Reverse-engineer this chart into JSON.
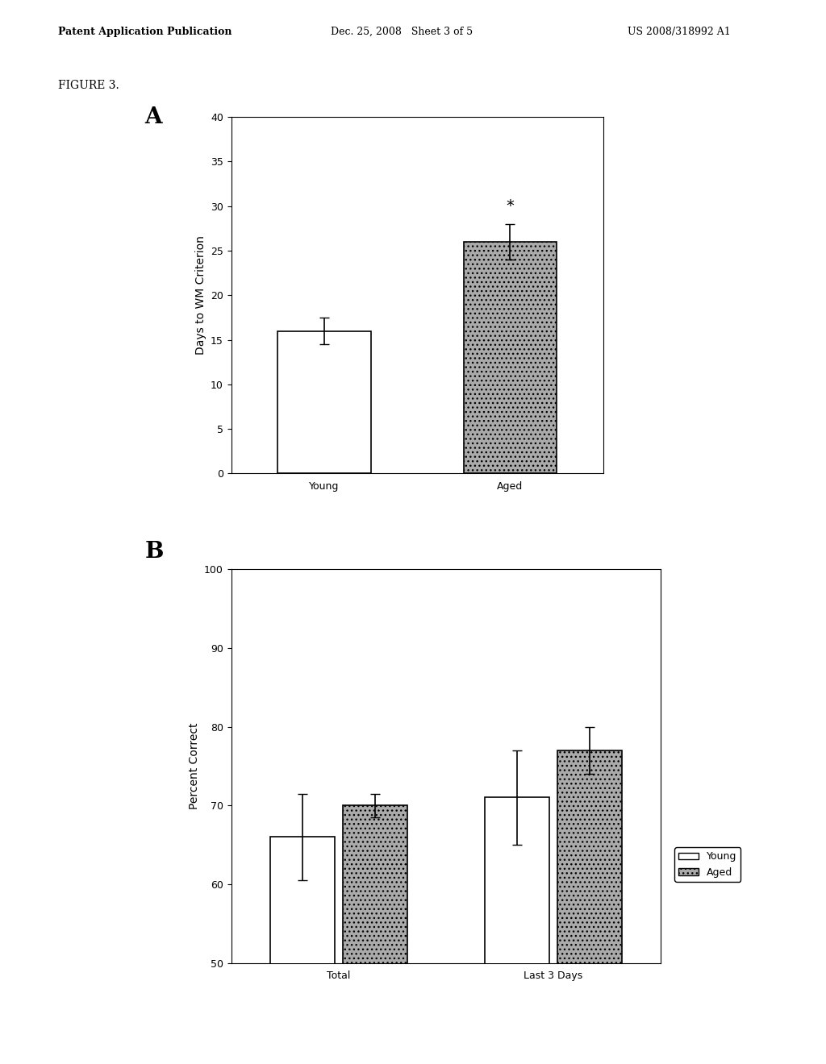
{
  "fig_label": "FIGURE 3.",
  "header_left": "Patent Application Publication",
  "header_center": "Dec. 25, 2008   Sheet 3 of 5",
  "header_right": "US 2008/318992 A1",
  "panel_A": {
    "label": "A",
    "categories": [
      "Young",
      "Aged"
    ],
    "values": [
      16.0,
      26.0
    ],
    "errors": [
      1.5,
      2.0
    ],
    "bar_colors": [
      "#ffffff",
      "#aaaaaa"
    ],
    "bar_edgecolor": "#000000",
    "ylabel": "Days to WM Criterion",
    "ylim": [
      0,
      40
    ],
    "yticks": [
      0,
      5,
      10,
      15,
      20,
      25,
      30,
      35,
      40
    ],
    "star_annotation": "*",
    "star_on_bar": 1
  },
  "panel_B": {
    "label": "B",
    "group_labels": [
      "Total",
      "Last 3 Days"
    ],
    "young_values": [
      66.0,
      71.0
    ],
    "aged_values": [
      70.0,
      77.0
    ],
    "young_errors": [
      5.5,
      6.0
    ],
    "aged_errors": [
      1.5,
      3.0
    ],
    "bar_colors_young": "#ffffff",
    "bar_colors_aged": "#aaaaaa",
    "bar_edgecolor": "#000000",
    "ylabel": "Percent Correct",
    "ylim": [
      50,
      100
    ],
    "yticks": [
      50,
      60,
      70,
      80,
      90,
      100
    ],
    "legend_labels": [
      "Young",
      "Aged"
    ],
    "legend_colors": [
      "#ffffff",
      "#aaaaaa"
    ]
  },
  "background_color": "#ffffff",
  "text_color": "#000000",
  "font_size_axis_label": 10,
  "font_size_tick": 9,
  "font_size_panel_label": 20,
  "font_size_header": 9,
  "bar_width": 0.3
}
